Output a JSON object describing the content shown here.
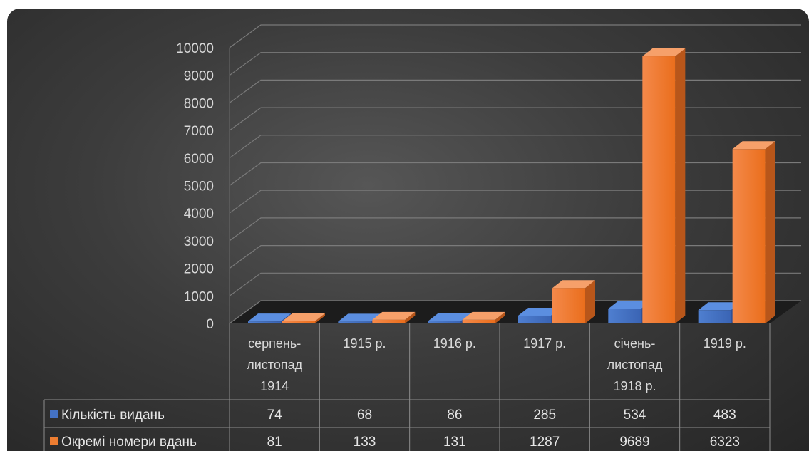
{
  "chart_data": {
    "type": "bar",
    "categories": [
      [
        "серпень-",
        "листопад",
        "1914"
      ],
      [
        "1915 р."
      ],
      [
        "1916 р."
      ],
      [
        "1917 р."
      ],
      [
        "січень-",
        "листопад",
        "1918 р."
      ],
      [
        "1919 р."
      ]
    ],
    "series": [
      {
        "name": "Кількість видань",
        "values": [
          74,
          68,
          86,
          285,
          534,
          483
        ],
        "color": "#4472c4"
      },
      {
        "name": "Окремі номери вдань",
        "values": [
          81,
          133,
          131,
          1287,
          9689,
          6323
        ],
        "color": "#ed7d31"
      }
    ],
    "y_ticks": [
      "0",
      "1000",
      "2000",
      "3000",
      "4000",
      "5000",
      "6000",
      "7000",
      "8000",
      "9000",
      "10000"
    ],
    "ylim": [
      0,
      10000
    ],
    "style": "3d-clustered-column",
    "grid": true,
    "data_table": true,
    "background": "#3a3a3a"
  }
}
